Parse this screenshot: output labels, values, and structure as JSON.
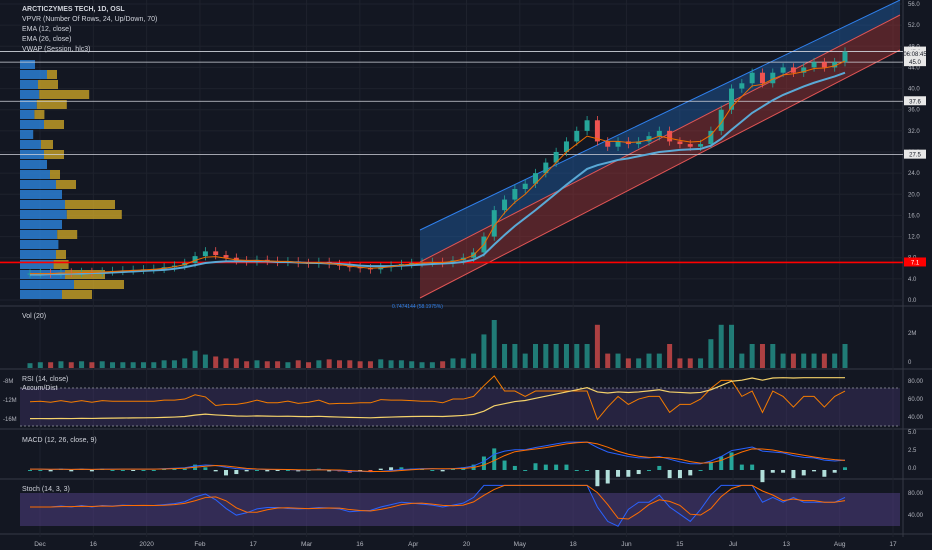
{
  "header": {
    "symbol": "ARCTICZYMES TECH, 1D, OSL",
    "indicators": [
      "VPVR (Number Of Rows, 24, Up/Down, 70)",
      "EMA (12, close)",
      "EMA (26, close)",
      "VWAP (Session, hlc3)"
    ]
  },
  "panels": {
    "vol": "Vol (20)",
    "rsi": "RSI (14, close)",
    "rsi_sub": "Accum/Dist",
    "macd": "MACD (12, 26, close, 9)",
    "stoch": "Stoch (14, 3, 3)"
  },
  "colors": {
    "background": "#131722",
    "up": "#26a69a",
    "down": "#ef5350",
    "ema_fast": "#ef6c00",
    "ema_slow": "#5aa9d6",
    "channel_upper": "#1e6fbf",
    "channel_lower": "#b93a3a",
    "red_line": "#ff0000",
    "rsi_line": "#f57c00",
    "ad_line": "#f5d26a",
    "stoch_band": "#4a3a78"
  },
  "chart_data": {
    "type": "candlestick",
    "title": "ARCTICZYMES TECH, 1D, OSL",
    "x_ticks": [
      "Dec",
      "16",
      "2020",
      "Feb",
      "17",
      "Mar",
      "16",
      "Apr",
      "20",
      "May",
      "18",
      "Jun",
      "15",
      "Jul",
      "13",
      "Aug",
      "17"
    ],
    "price_axis": {
      "ticks": [
        "0.0",
        "4.0",
        "8.0",
        "12.0",
        "16.0",
        "20.0",
        "24.0",
        "28.0",
        "32.0",
        "36.0",
        "40.0",
        "44.0",
        "48.0",
        "52.0",
        "56.0"
      ],
      "ylim": [
        0,
        56
      ]
    },
    "price_labels": [
      {
        "value": 47.0,
        "text": "47.0"
      },
      {
        "value": 46.5,
        "text": "06:08:45"
      },
      {
        "value": 45.0,
        "text": "45.0"
      },
      {
        "value": 37.6,
        "text": "37.6"
      },
      {
        "value": 27.5,
        "text": "27.5"
      },
      {
        "value": 7.1,
        "text": "7.1"
      }
    ],
    "horizontal_levels": [
      47.0,
      45.0,
      37.6,
      27.5
    ],
    "red_level": 7.1,
    "channel_label": "0.7474144  (58.1975%)",
    "close_series": [
      5,
      5.1,
      5,
      5.2,
      5.1,
      5.3,
      5.2,
      5.4,
      5.5,
      5.6,
      5.7,
      5.8,
      5.9,
      6.2,
      6.5,
      7,
      8.3,
      9.2,
      8.5,
      8.0,
      7.5,
      7.3,
      7.6,
      7.4,
      7.2,
      7.3,
      7.0,
      6.9,
      7.2,
      6.8,
      6.5,
      6.2,
      6.0,
      5.8,
      6.2,
      6.5,
      6.8,
      7.0,
      7.1,
      7.2,
      7.0,
      7.5,
      8,
      9,
      12,
      17,
      19,
      21,
      22,
      24,
      26,
      28,
      30,
      32,
      34,
      30,
      29,
      30,
      29.5,
      30,
      31,
      32,
      30,
      29.5,
      29,
      29.5,
      32,
      36,
      40,
      41,
      43,
      41,
      43,
      44,
      43,
      44,
      45,
      44,
      45,
      47
    ],
    "ema_fast": [
      5,
      5,
      5,
      5.1,
      5.1,
      5.2,
      5.2,
      5.3,
      5.4,
      5.5,
      5.6,
      5.7,
      5.8,
      6,
      6.3,
      6.7,
      7.5,
      8.1,
      8.2,
      7.9,
      7.6,
      7.5,
      7.5,
      7.4,
      7.3,
      7.3,
      7.1,
      7,
      7.1,
      6.9,
      6.7,
      6.4,
      6.2,
      6.0,
      6.1,
      6.3,
      6.6,
      6.8,
      7.0,
      7.1,
      7.1,
      7.3,
      7.7,
      8.5,
      10.5,
      14,
      16.5,
      18.5,
      20,
      22,
      24,
      26,
      28,
      29.5,
      31,
      30.5,
      30,
      30,
      29.8,
      29.9,
      30.3,
      31,
      30.6,
      30.2,
      29.9,
      30.0,
      31.2,
      33.5,
      36.5,
      38.5,
      40.5,
      40.8,
      41.8,
      42.6,
      42.8,
      43.2,
      43.8,
      43.9,
      44.3,
      45.2
    ],
    "ema_slow": [
      4.8,
      4.8,
      4.9,
      4.9,
      5.0,
      5.0,
      5.1,
      5.1,
      5.2,
      5.3,
      5.4,
      5.5,
      5.6,
      5.7,
      5.9,
      6.2,
      6.6,
      7.0,
      7.2,
      7.3,
      7.3,
      7.3,
      7.3,
      7.3,
      7.2,
      7.2,
      7.1,
      7.0,
      7.0,
      6.9,
      6.8,
      6.7,
      6.5,
      6.4,
      6.4,
      6.4,
      6.5,
      6.6,
      6.7,
      6.8,
      6.9,
      7.0,
      7.2,
      7.6,
      8.6,
      10.5,
      12.3,
      14.0,
      15.5,
      17,
      18.6,
      20.2,
      21.8,
      23.3,
      24.8,
      25.5,
      26,
      26.5,
      26.8,
      27.2,
      27.6,
      28,
      28.2,
      28.4,
      28.5,
      28.6,
      29.2,
      30.5,
      32.2,
      33.8,
      35.4,
      36.6,
      37.8,
      38.8,
      39.6,
      40.4,
      41.1,
      41.7,
      42.3,
      43.0
    ],
    "volume_axis": [
      "2M",
      "0"
    ],
    "rsi_axis": [
      "80.00",
      "60.00",
      "40.00"
    ],
    "ad_axis": [
      "-8M",
      "-12M",
      "-16M"
    ],
    "macd_axis": [
      "5.0",
      "2.5",
      "0.0"
    ],
    "stoch_axis": [
      "80.00",
      "40.00"
    ]
  }
}
